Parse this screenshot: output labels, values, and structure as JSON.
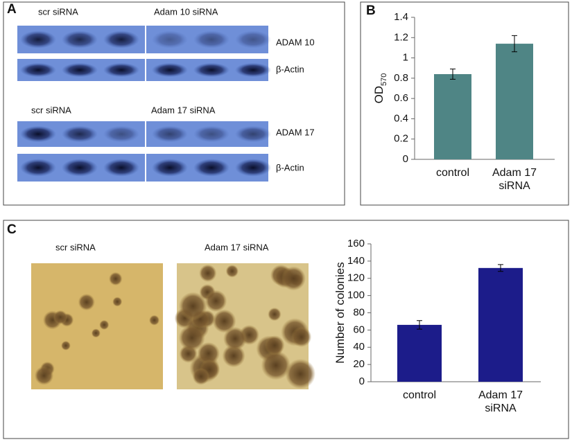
{
  "panel_a": {
    "label": "A",
    "top": {
      "left_title": "scr siRNA",
      "right_title": "Adam 10 siRNA",
      "row_labels": [
        "ADAM 10",
        "β-Actin"
      ]
    },
    "bottom": {
      "left_title": "scr siRNA",
      "right_title": "Adam 17 siRNA",
      "row_labels": [
        "ADAM 17",
        "β-Actin"
      ]
    }
  },
  "panel_b": {
    "label": "B"
  },
  "panel_c": {
    "label": "C",
    "image_titles": [
      "scr siRNA",
      "Adam 17 siRNA"
    ]
  },
  "chart_data": [
    {
      "type": "bar",
      "y_label": "OD",
      "y_label_subscript": "570",
      "categories": [
        "control",
        "Adam 17 siRNA"
      ],
      "values": [
        0.84,
        1.14
      ],
      "errors": [
        0.05,
        0.08
      ],
      "color": "#4f8585",
      "ylim": [
        0,
        1.4
      ],
      "yticks": [
        0,
        0.2,
        0.4,
        0.6,
        0.8,
        1,
        1.2,
        1.4
      ]
    },
    {
      "type": "bar",
      "y_label": "Number of colonies",
      "categories": [
        "control",
        "Adam 17 siRNA"
      ],
      "values": [
        66,
        132
      ],
      "errors": [
        5,
        4
      ],
      "color": "#1c1c8a",
      "ylim": [
        0,
        160
      ],
      "yticks": [
        0,
        20,
        40,
        60,
        80,
        100,
        120,
        140,
        160
      ]
    }
  ]
}
